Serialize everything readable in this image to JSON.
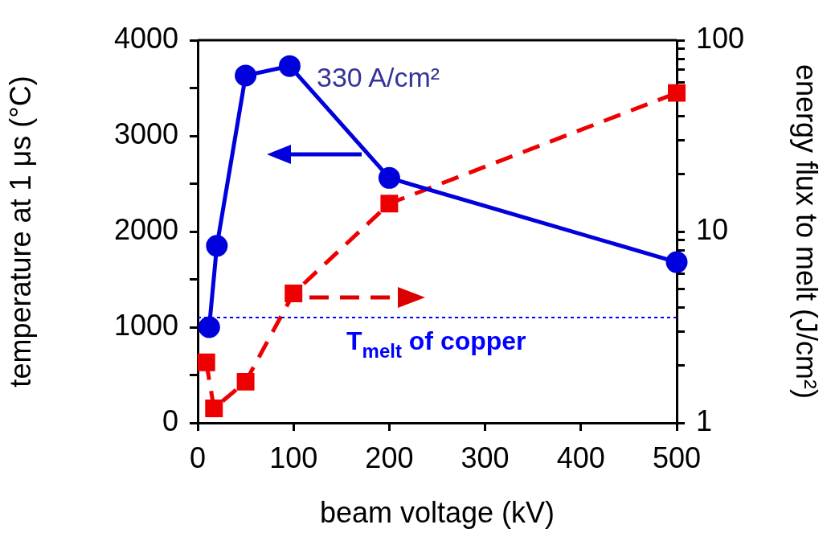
{
  "chart_data": {
    "type": "line",
    "xlabel": "beam voltage (kV)",
    "ylabel": "temperature at 1 μs (°C)",
    "y2label": "energy flux to melt (J/cm²)",
    "xlim": [
      0,
      500
    ],
    "xticks": [
      0,
      100,
      200,
      300,
      400,
      500
    ],
    "ylim": [
      0,
      4000
    ],
    "yticks": [
      0,
      {
        "value": 500,
        "label": null
      },
      1000,
      {
        "value": 1500,
        "label": null
      },
      2000,
      {
        "value": 2500,
        "label": null
      },
      3000,
      {
        "value": 3500,
        "label": null
      },
      4000
    ],
    "y2lim": [
      1,
      100
    ],
    "y2ticks": [
      1,
      {
        "value": 2,
        "label": null
      },
      {
        "value": 3,
        "label": null
      },
      {
        "value": 4,
        "label": null
      },
      {
        "value": 5,
        "label": null
      },
      {
        "value": 6,
        "label": null
      },
      {
        "value": 7,
        "label": null
      },
      {
        "value": 8,
        "label": null
      },
      {
        "value": 9,
        "label": null
      },
      10,
      {
        "value": 20,
        "label": null
      },
      {
        "value": 30,
        "label": null
      },
      {
        "value": 40,
        "label": null
      },
      {
        "value": 50,
        "label": null
      },
      {
        "value": 60,
        "label": null
      },
      {
        "value": 70,
        "label": null
      },
      {
        "value": 80,
        "label": null
      },
      {
        "value": 90,
        "label": null
      },
      100
    ],
    "log": "y2",
    "grid": false,
    "legend": false,
    "series": [
      {
        "color": "#0000dd",
        "marker": "circle",
        "line_style": "solid",
        "x": [
          12,
          20,
          50,
          96,
          200,
          500
        ],
        "values": [
          1000,
          1850,
          3630,
          3730,
          2560,
          1680
        ]
      },
      {
        "color": "#ee0000",
        "marker": "square",
        "line_style": "dashed",
        "axis": "y2",
        "x": [
          9,
          17,
          50,
          100,
          200,
          500
        ],
        "values": [
          2.07,
          1.19,
          1.64,
          4.75,
          14,
          53
        ]
      }
    ],
    "ref_lines": [
      {
        "axis": "y",
        "value": 1100,
        "label": "T$_{melt}$ of copper",
        "color": "#0000ff",
        "line_style": "dotted"
      }
    ],
    "annotations": [
      "330 A/cm²"
    ]
  }
}
